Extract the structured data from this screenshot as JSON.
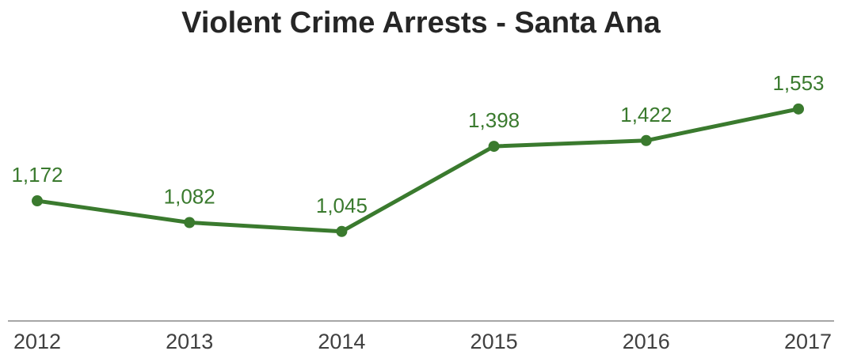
{
  "chart_data": {
    "type": "line",
    "title": "Violent Crime Arrests - Santa Ana",
    "xlabel": "",
    "ylabel": "",
    "categories": [
      "2012",
      "2013",
      "2014",
      "2015",
      "2016",
      "2017"
    ],
    "series": [
      {
        "values": [
          1172,
          1082,
          1045,
          1398,
          1422,
          1553
        ],
        "labels": [
          "1,172",
          "1,082",
          "1,045",
          "1,398",
          "1,422",
          "1,553"
        ],
        "color": "#3a7a2e"
      }
    ],
    "ylim": [
      700,
      1700
    ],
    "grid": false,
    "legend": "none",
    "axis_color": "#a6a6a6"
  }
}
